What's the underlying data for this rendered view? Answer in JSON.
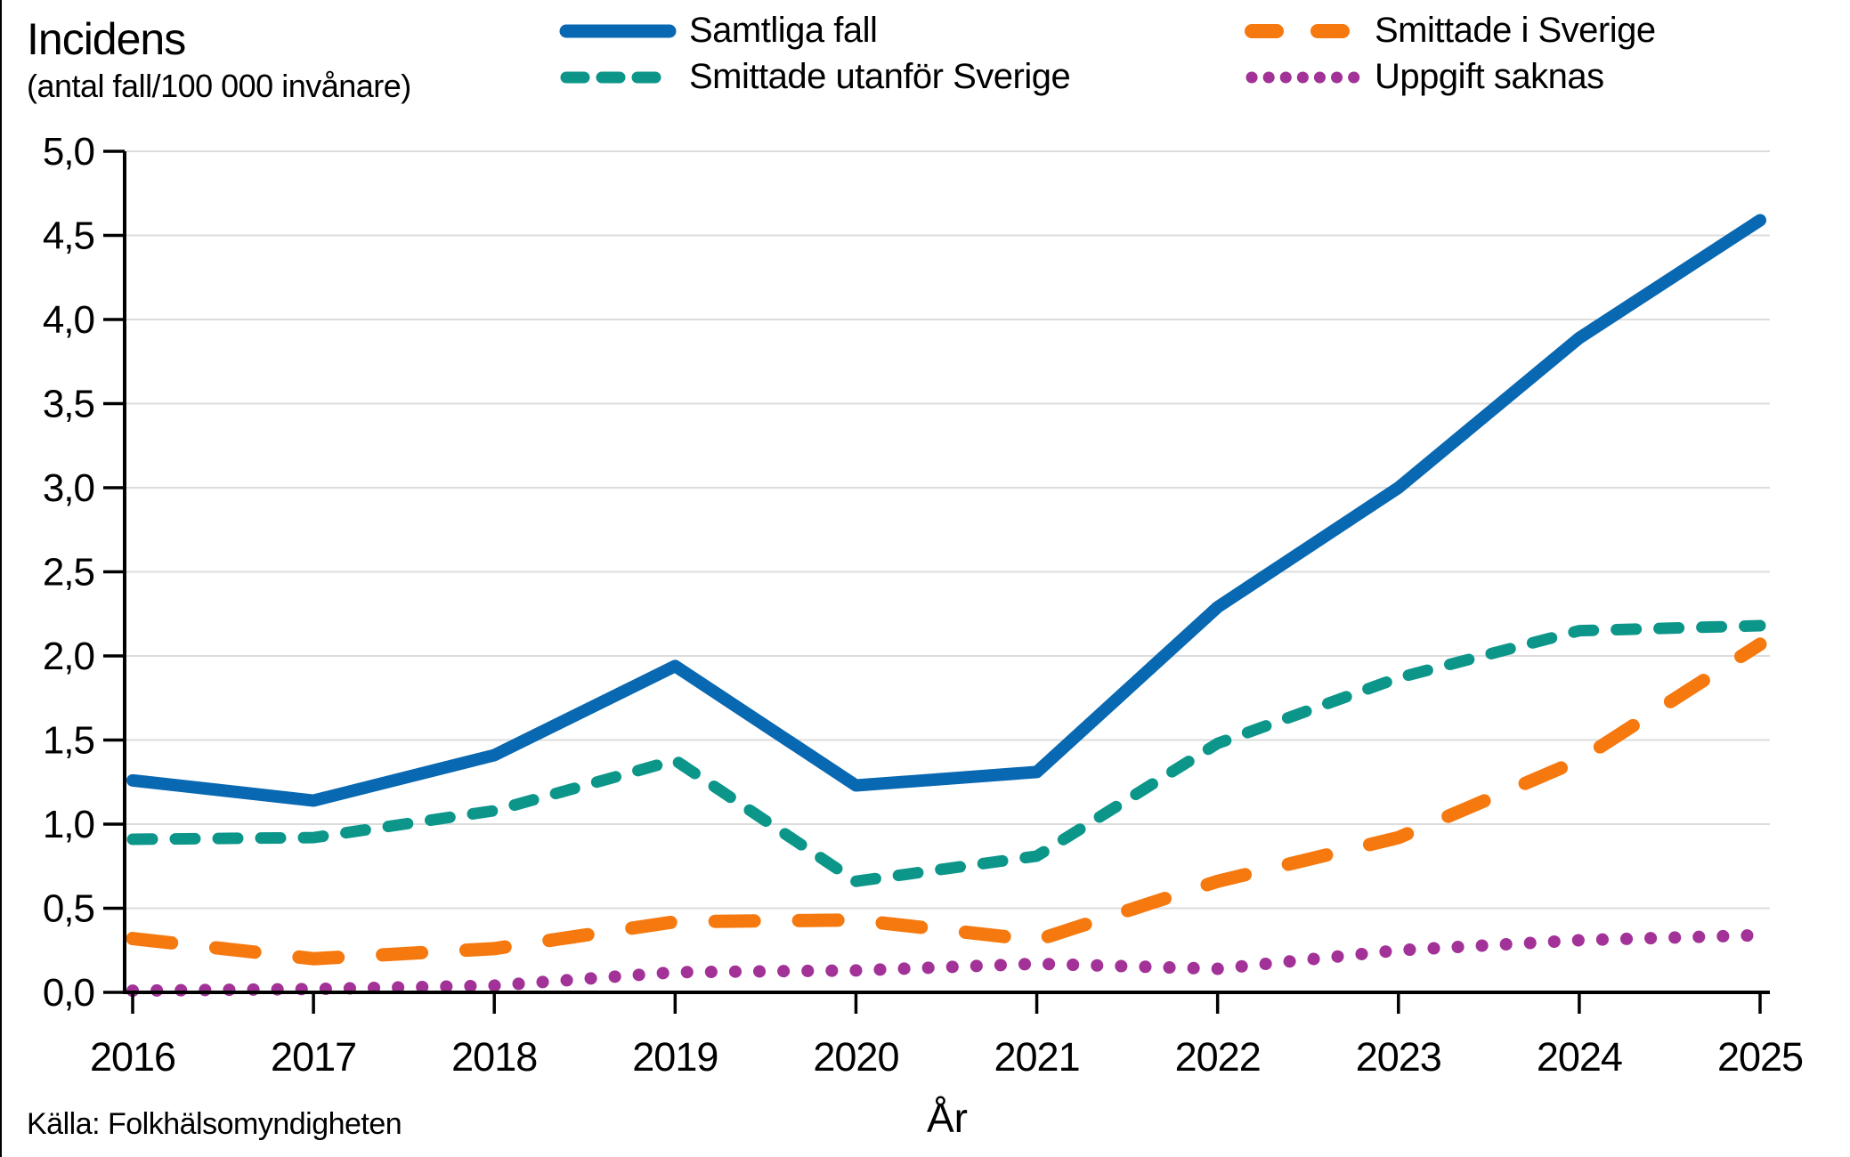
{
  "header": {
    "title": "Incidens",
    "subtitle": "(antal fall/100 000 invånare)"
  },
  "chart_data": {
    "type": "line",
    "title": "Incidens",
    "subtitle": "(antal fall/100 000 invånare)",
    "xlabel": "År",
    "ylabel": "Incidens (antal fall/100 000 invånare)",
    "ylim": [
      0,
      5
    ],
    "ytick_step": 0.5,
    "y_tick_labels": [
      "0,0",
      "0,5",
      "1,0",
      "1,5",
      "2,0",
      "2,5",
      "3,0",
      "3,5",
      "4,0",
      "4,5",
      "5,0"
    ],
    "grid": "horizontal",
    "legend_position": "top",
    "x": [
      "2016",
      "2017",
      "2018",
      "2019",
      "2020",
      "2021",
      "2022",
      "2023",
      "2024",
      "2025"
    ],
    "series": [
      {
        "name": "Samtliga fall",
        "color": "#0868B1",
        "style": "solid",
        "values": [
          1.26,
          1.14,
          1.41,
          1.94,
          1.23,
          1.31,
          2.29,
          3.0,
          3.89,
          4.59
        ]
      },
      {
        "name": "Smittade i Sverige",
        "color": "#F5790F",
        "style": "dashed-long",
        "values": [
          0.32,
          0.2,
          0.26,
          0.42,
          0.43,
          0.31,
          0.66,
          0.92,
          1.38,
          2.07
        ]
      },
      {
        "name": "Smittade utanför Sverige",
        "color": "#0C968A",
        "style": "dashed",
        "values": [
          0.91,
          0.92,
          1.08,
          1.38,
          0.66,
          0.81,
          1.48,
          1.87,
          2.15,
          2.18
        ]
      },
      {
        "name": "Uppgift saknas",
        "color": "#A23297",
        "style": "dotted",
        "values": [
          0.01,
          0.02,
          0.04,
          0.12,
          0.13,
          0.17,
          0.14,
          0.25,
          0.31,
          0.34
        ]
      }
    ]
  },
  "footer": {
    "source": "Källa: Folkhälsomyndigheten"
  }
}
